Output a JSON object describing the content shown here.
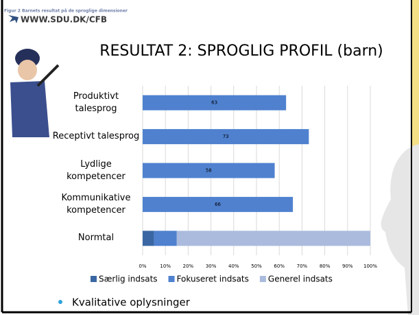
{
  "header": {
    "caption": "Figur 2 Barnets resultat på de sproglige dimensioner",
    "logo": "WWW.SDU.DK/CFB"
  },
  "slide_title": "RESULTAT 2: SPROGLIG PROFIL (barn)",
  "chart_data": {
    "type": "stacked-barh",
    "categories": [
      "Produktivt talesprog",
      "Receptivt talesprog",
      "Lydlige kompetencer",
      "Kommunikative kompetencer",
      "Normtal"
    ],
    "series": [
      {
        "name": "Særlig indsats",
        "color": "#3a67a3",
        "values": [
          null,
          null,
          null,
          null,
          5
        ]
      },
      {
        "name": "Fokuseret indsats",
        "color": "#4f81cf",
        "values": [
          63,
          73,
          58,
          66,
          10
        ],
        "value_labels": [
          "63",
          "73",
          "58",
          "66",
          null
        ]
      },
      {
        "name": "Generel indsats",
        "color": "#aabbdd",
        "values": [
          null,
          null,
          null,
          null,
          85
        ]
      }
    ],
    "xlim": [
      0,
      100
    ],
    "xticks": [
      {
        "value": 0,
        "label": "0%"
      },
      {
        "value": 10,
        "label": "10%"
      },
      {
        "value": 20,
        "label": "20%"
      },
      {
        "value": 30,
        "label": "30%"
      },
      {
        "value": 40,
        "label": "40%"
      },
      {
        "value": 50,
        "label": "50%"
      },
      {
        "value": 60,
        "label": "60%"
      },
      {
        "value": 70,
        "label": "70%"
      },
      {
        "value": 80,
        "label": "80%"
      },
      {
        "value": 90,
        "label": "90%"
      },
      {
        "value": 100,
        "label": "100%"
      }
    ],
    "grid": true,
    "legend": "bottom"
  },
  "bullets": [
    "Kvalitative oplysninger"
  ]
}
